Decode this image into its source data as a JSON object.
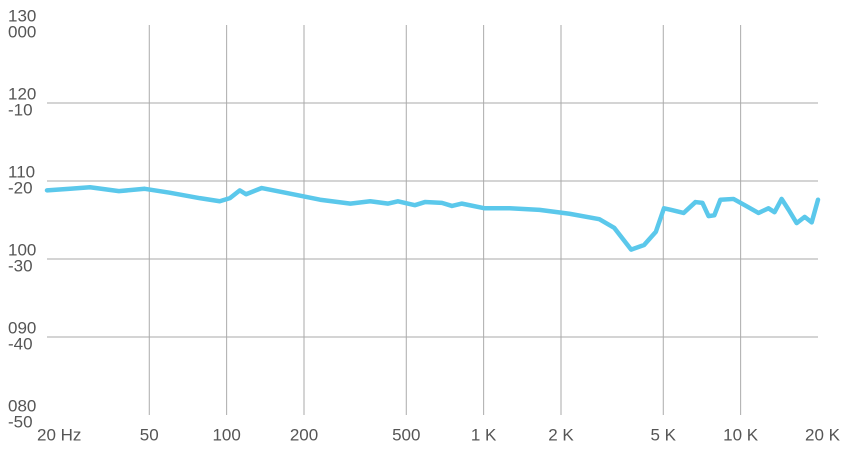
{
  "chart_data": {
    "type": "line",
    "x": [
      20,
      24.6,
      29.4,
      38.1,
      48,
      60,
      78.6,
      94,
      103,
      112.5,
      119,
      137,
      169,
      231,
      303,
      362,
      425,
      464,
      540,
      591,
      688,
      753,
      823,
      1010,
      1263,
      1651,
      2157,
      2820,
      3220,
      3750,
      4210,
      4680,
      5030,
      5350,
      6000,
      6670,
      7100,
      7500,
      7900,
      8340,
      9380,
      10500,
      11730,
      12830,
      13550,
      14440,
      15380,
      16520,
      17750,
      18900,
      20000
    ],
    "series": [
      {
        "color": "#5bc8eb",
        "values": [
          -21.2,
          -21.0,
          -20.8,
          -21.3,
          -21.0,
          -21.5,
          -22.2,
          -22.6,
          -22.2,
          -21.2,
          -21.7,
          -20.9,
          -21.5,
          -22.4,
          -22.9,
          -22.6,
          -22.9,
          -22.6,
          -23.1,
          -22.7,
          -22.8,
          -23.2,
          -22.9,
          -23.5,
          -23.5,
          -23.7,
          -24.2,
          -24.9,
          -26.0,
          -28.8,
          -28.2,
          -26.5,
          -23.5,
          -23.7,
          -24.1,
          -22.7,
          -22.8,
          -24.5,
          -24.4,
          -22.4,
          -22.3,
          -23.2,
          -24.1,
          -23.5,
          -24.0,
          -22.3,
          -23.7,
          -25.4,
          -24.6,
          -25.3,
          -22.4
        ]
      }
    ],
    "xlog": true,
    "xlim": [
      20,
      20000
    ],
    "xticks": [
      {
        "value": 20,
        "label": "20 Hz"
      },
      50,
      100,
      200,
      500,
      {
        "value": 1000,
        "label": "1 K"
      },
      {
        "value": 2000,
        "label": "2 K"
      },
      {
        "value": 5000,
        "label": "5 K"
      },
      {
        "value": 10000,
        "label": "10 K"
      },
      {
        "value": 20000,
        "label": "20 K"
      }
    ],
    "ylim": [
      -50,
      0
    ],
    "yticks": [
      {
        "value": 0,
        "label": "000"
      },
      -10,
      -20,
      -30,
      -40,
      -50
    ],
    "y2lim": [
      80,
      130
    ],
    "y2ticks": [
      130,
      120,
      110,
      100,
      {
        "value": 90,
        "label": "090"
      },
      {
        "value": 80,
        "label": "080"
      }
    ],
    "grid": true
  }
}
